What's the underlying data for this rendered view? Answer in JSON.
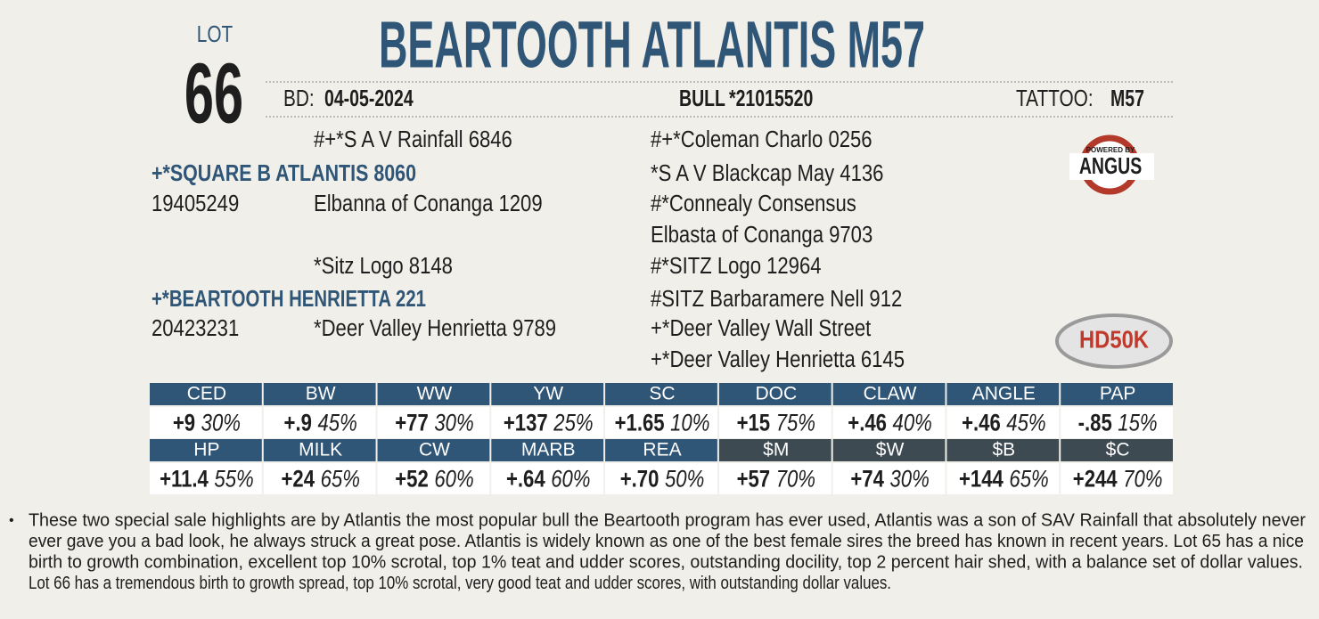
{
  "lot": {
    "label": "LOT",
    "number": "66"
  },
  "name": "BEARTOOTH ATLANTIS M57",
  "info": {
    "bd_label": "BD:",
    "bd": "04-05-2024",
    "bull_label": "BULL",
    "registration": "*21015520",
    "tattoo_label": "TATTOO:",
    "tattoo": "M57"
  },
  "pedigree": {
    "sire": {
      "name": "+*SQUARE B ATLANTIS 8060",
      "registration": "19405249"
    },
    "dam": {
      "name": "+*BEARTOOTH HENRIETTA 221",
      "registration": "20423231"
    },
    "grandparents": [
      "#+*S A V Rainfall 6846",
      "Elbanna of Conanga 1209",
      "*Sitz Logo 8148",
      "*Deer Valley Henrietta 9789"
    ],
    "great_grandparents": [
      "#+*Coleman Charlo 0256",
      "*S A V Blackcap May 4136",
      "#*Connealy Consensus",
      "Elbasta of Conanga 9703",
      "#*SITZ Logo 12964",
      "#SITZ Barbaramere Nell 912",
      "+*Deer Valley Wall Street",
      "+*Deer Valley Henrietta 6145"
    ]
  },
  "logos": {
    "angus_top": "POWERED BY",
    "angus": "ANGUS",
    "genomics": "HD50K"
  },
  "epd": {
    "rows": [
      [
        {
          "trait": "CED",
          "epd": "+9",
          "pct": "30%"
        },
        {
          "trait": "BW",
          "epd": "+.9",
          "pct": "45%"
        },
        {
          "trait": "WW",
          "epd": "+77",
          "pct": "30%"
        },
        {
          "trait": "YW",
          "epd": "+137",
          "pct": "25%"
        },
        {
          "trait": "SC",
          "epd": "+1.65",
          "pct": "10%"
        },
        {
          "trait": "DOC",
          "epd": "+15",
          "pct": "75%"
        },
        {
          "trait": "CLAW",
          "epd": "+.46",
          "pct": "40%"
        },
        {
          "trait": "ANGLE",
          "epd": "+.46",
          "pct": "45%"
        },
        {
          "trait": "PAP",
          "epd": "-.85",
          "pct": "15%"
        }
      ],
      [
        {
          "trait": "HP",
          "epd": "+11.4",
          "pct": "55%"
        },
        {
          "trait": "MILK",
          "epd": "+24",
          "pct": "65%"
        },
        {
          "trait": "CW",
          "epd": "+52",
          "pct": "60%"
        },
        {
          "trait": "MARB",
          "epd": "+.64",
          "pct": "60%"
        },
        {
          "trait": "REA",
          "epd": "+.70",
          "pct": "50%"
        },
        {
          "trait": "$M",
          "epd": "+57",
          "pct": "70%"
        },
        {
          "trait": "$W",
          "epd": "+74",
          "pct": "30%"
        },
        {
          "trait": "$B",
          "epd": "+144",
          "pct": "65%"
        },
        {
          "trait": "$C",
          "epd": "+244",
          "pct": "70%"
        }
      ]
    ]
  },
  "note": {
    "bullet": "•",
    "lines": [
      "These two special sale highlights are by Atlantis the most popular bull the Beartooth program has ever used, Atlantis was a son of SAV Rainfall that absolutely never",
      "ever gave you a bad look, he always struck a great pose. Atlantis is widely known as one of the best female sires the breed has known in recent years. Lot 65 has a nice",
      "birth to growth combination, excellent top 10% scrotal, top 1% teat  and udder scores, outstanding docility, top 2 percent hair shed, with a balance set of dollar values.",
      "Lot 66 has a tremendous birth to growth spread, top 10% scrotal, very good teat and udder scores, with outstanding dollar values."
    ]
  }
}
